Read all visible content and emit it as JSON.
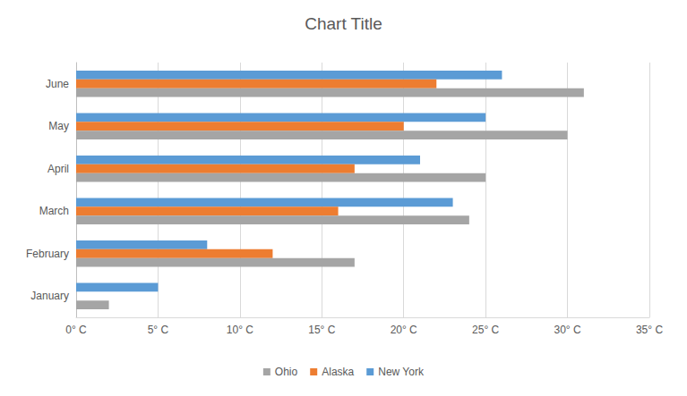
{
  "chart_data": {
    "type": "bar",
    "orientation": "horizontal",
    "title": "Chart Title",
    "categories": [
      "January",
      "February",
      "March",
      "April",
      "May",
      "June"
    ],
    "series": [
      {
        "name": "Ohio",
        "color": "#a5a5a5",
        "values": [
          2,
          17,
          24,
          25,
          30,
          31
        ]
      },
      {
        "name": "Alaska",
        "color": "#ed7d31",
        "values": [
          0,
          12,
          16,
          17,
          20,
          22
        ]
      },
      {
        "name": "New York",
        "color": "#5b9bd5",
        "values": [
          5,
          8,
          23,
          21,
          25,
          26
        ]
      }
    ],
    "xlim": [
      0,
      35
    ],
    "xticks": [
      {
        "value": 0,
        "label": "0° C"
      },
      {
        "value": 5,
        "label": "5° C"
      },
      {
        "value": 10,
        "label": "10° C"
      },
      {
        "value": 15,
        "label": "15° C"
      },
      {
        "value": 20,
        "label": "20° C"
      },
      {
        "value": 25,
        "label": "25° C"
      },
      {
        "value": 30,
        "label": "30° C"
      },
      {
        "value": 35,
        "label": "35° C"
      }
    ],
    "grid": true,
    "legend": "bottom"
  }
}
